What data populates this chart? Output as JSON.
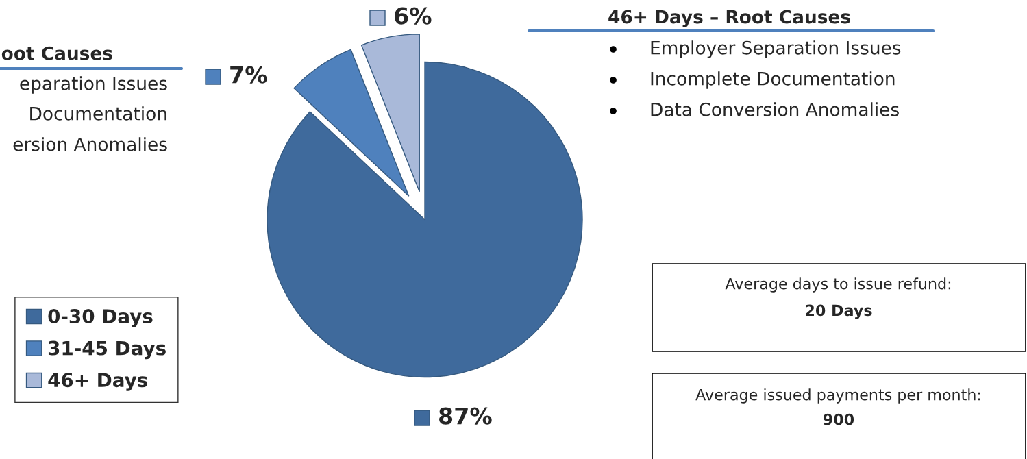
{
  "chart_data": {
    "type": "pie",
    "categories": [
      "0-30 Days",
      "31-45 Days",
      "46+ Days"
    ],
    "values": [
      87,
      7,
      6
    ],
    "colors": [
      "#3f6a9c",
      "#4f81bd",
      "#a9b9d9"
    ],
    "value_labels": [
      "87%",
      "7%",
      "6%"
    ],
    "legend": "left",
    "annotations": [
      "oot Causes",
      "eparation Issues",
      "Documentation",
      "ersion Anomalies",
      "46+ Days – Root Causes",
      "Employer Separation Issues",
      "Incomplete Documentation",
      "Data Conversion Anomalies",
      "Average days to issue refund:",
      "20 Days",
      "Average issued payments per month:",
      "900"
    ]
  }
}
